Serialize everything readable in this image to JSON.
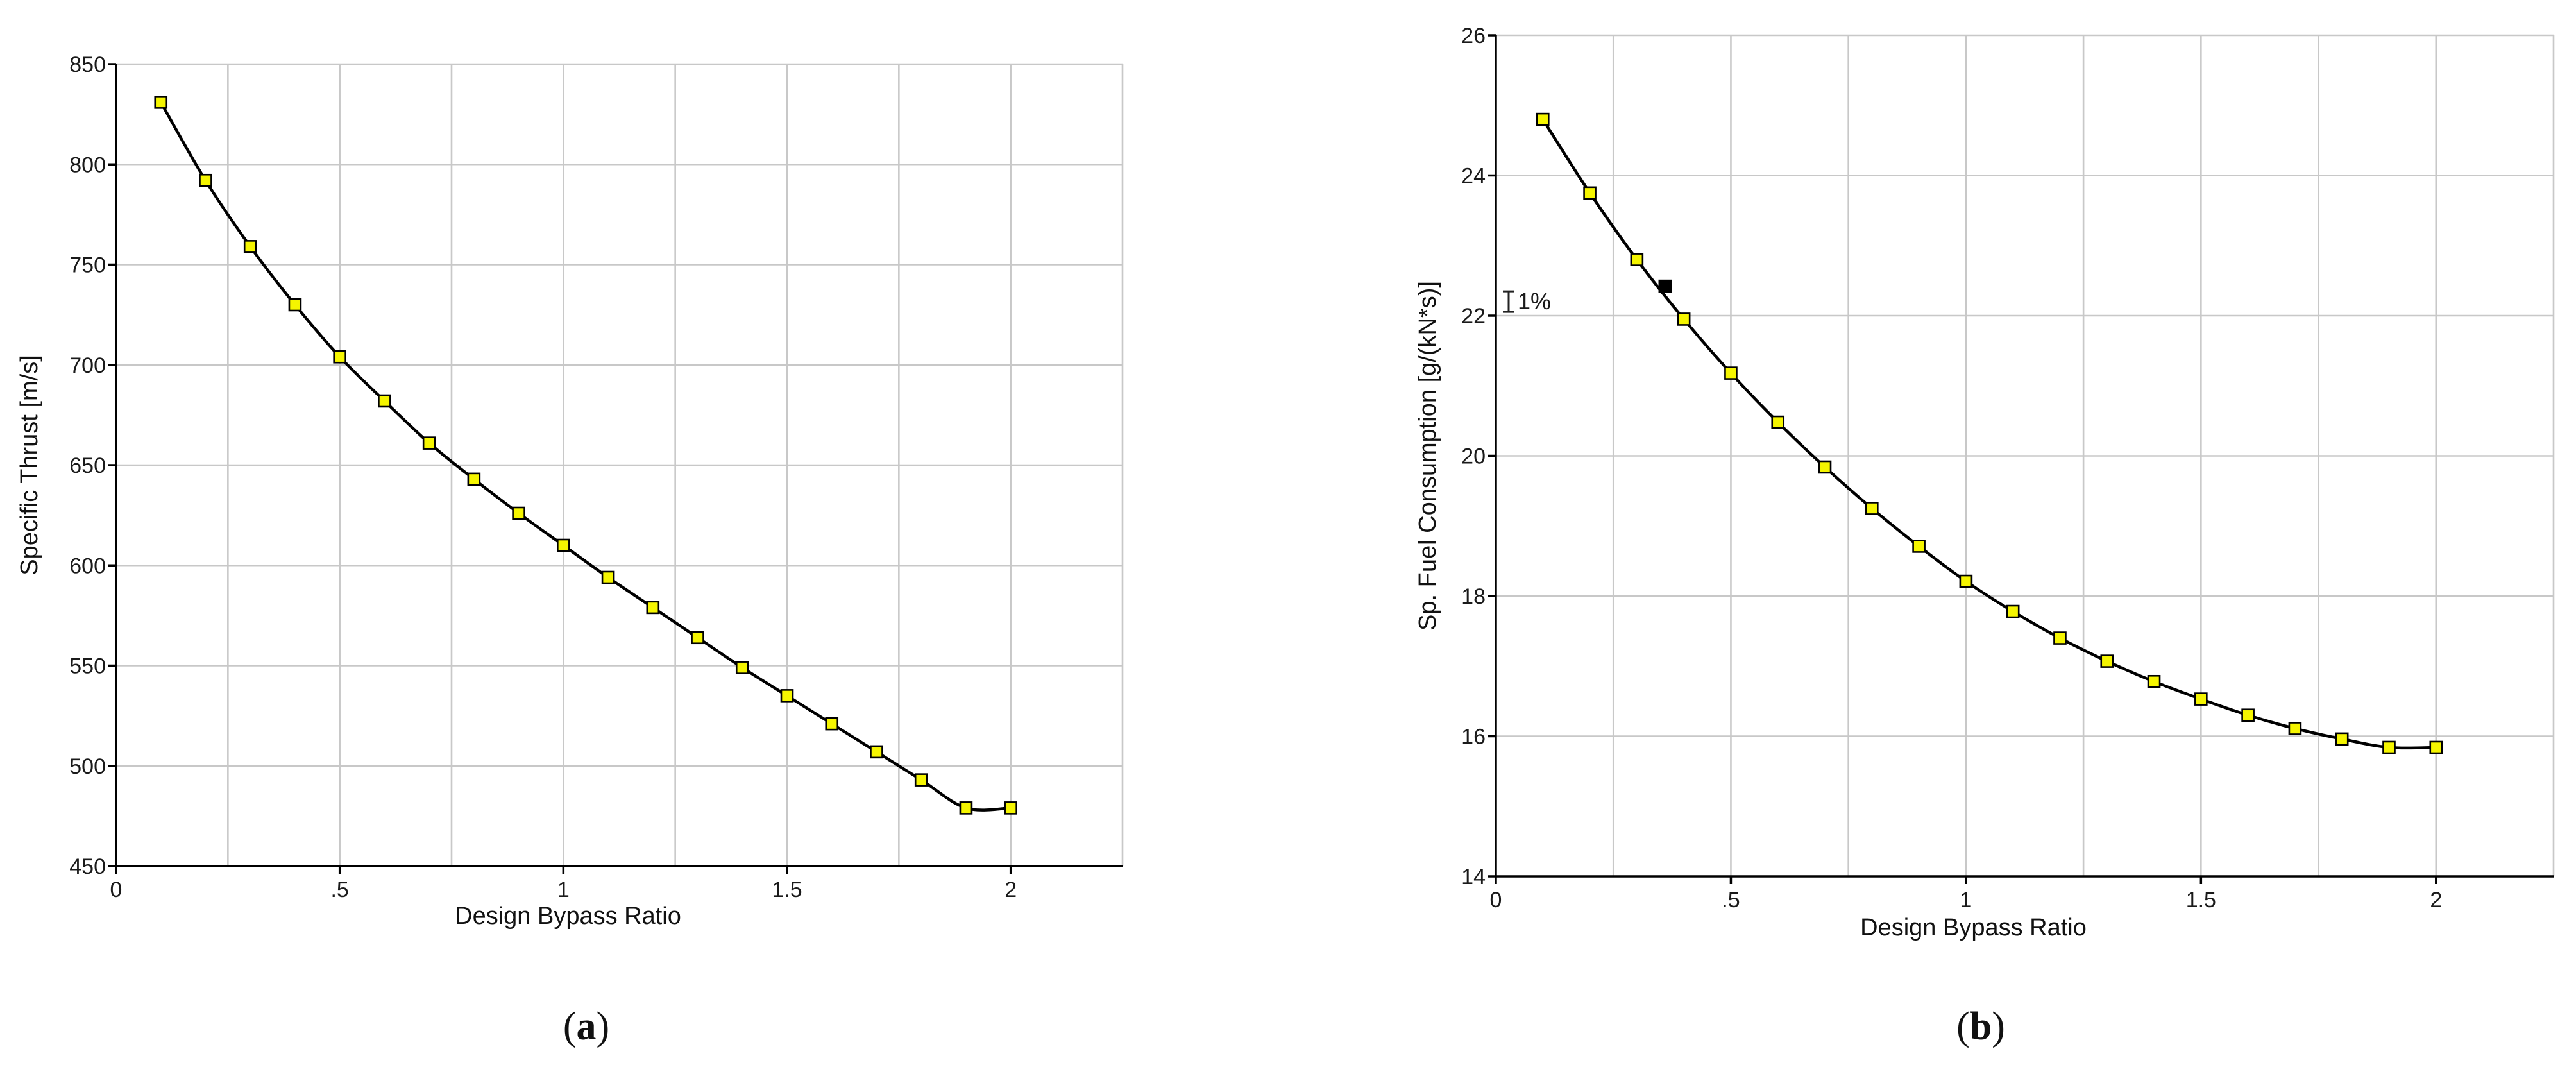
{
  "chart_data": [
    {
      "id": "a",
      "type": "line",
      "caption": "a",
      "title": "",
      "xlabel": "Design Bypass Ratio",
      "ylabel": "Specific Thrust [m/s]",
      "xlim": [
        0,
        2.25
      ],
      "ylim": [
        450,
        850
      ],
      "xticks": [
        0,
        0.5,
        1,
        1.5,
        2
      ],
      "xtick_labels": [
        "0",
        ".5",
        "1",
        "1.5",
        "2"
      ],
      "yticks": [
        450,
        500,
        550,
        600,
        650,
        700,
        750,
        800,
        850
      ],
      "ytick_labels": [
        "450",
        "500",
        "550",
        "600",
        "650",
        "700",
        "750",
        "800",
        "850"
      ],
      "xgrid": [
        0,
        0.25,
        0.5,
        0.75,
        1,
        1.25,
        1.5,
        1.75,
        2,
        2.25
      ],
      "ygrid": [
        450,
        500,
        550,
        600,
        650,
        700,
        750,
        800,
        850
      ],
      "grid": true,
      "marker_color": "#f5f500",
      "series": [
        {
          "x": [
            0.1,
            0.2,
            0.3,
            0.4,
            0.5,
            0.6,
            0.7,
            0.8,
            0.9,
            1.0,
            1.1,
            1.2,
            1.3,
            1.4,
            1.5,
            1.6,
            1.7,
            1.8,
            1.9,
            2.0
          ],
          "y": [
            831,
            792,
            759,
            730,
            704,
            682,
            661,
            643,
            626,
            610,
            594,
            579,
            564,
            549,
            535,
            521,
            507,
            493,
            479,
            479
          ]
        }
      ]
    },
    {
      "id": "b",
      "type": "line",
      "caption": "b",
      "title": "",
      "xlabel": "Design Bypass Ratio",
      "ylabel": "Sp. Fuel Consumption [g/(kN*s)]",
      "xlim": [
        0,
        2.25
      ],
      "ylim": [
        14,
        26
      ],
      "xticks": [
        0,
        0.5,
        1,
        1.5,
        2
      ],
      "xtick_labels": [
        "0",
        ".5",
        "1",
        "1.5",
        "2"
      ],
      "yticks": [
        14,
        16,
        18,
        20,
        22,
        24,
        26
      ],
      "ytick_labels": [
        "14",
        "16",
        "18",
        "20",
        "22",
        "24",
        "26"
      ],
      "xgrid": [
        0,
        0.25,
        0.5,
        0.75,
        1,
        1.25,
        1.5,
        1.75,
        2,
        2.25
      ],
      "ygrid": [
        14,
        16,
        18,
        20,
        22,
        24,
        26
      ],
      "grid": true,
      "marker_color": "#f5f500",
      "annotation": "1%",
      "design_point": {
        "x": 0.36,
        "y": 22.42
      },
      "series": [
        {
          "x": [
            0.1,
            0.2,
            0.3,
            0.4,
            0.5,
            0.6,
            0.7,
            0.8,
            0.9,
            1.0,
            1.1,
            1.2,
            1.3,
            1.4,
            1.5,
            1.6,
            1.7,
            1.8,
            1.9,
            2.0
          ],
          "y": [
            24.8,
            23.75,
            22.8,
            21.95,
            21.18,
            20.48,
            19.84,
            19.25,
            18.71,
            18.21,
            17.78,
            17.4,
            17.07,
            16.78,
            16.53,
            16.3,
            16.11,
            15.96,
            15.84,
            15.84
          ]
        }
      ]
    }
  ]
}
